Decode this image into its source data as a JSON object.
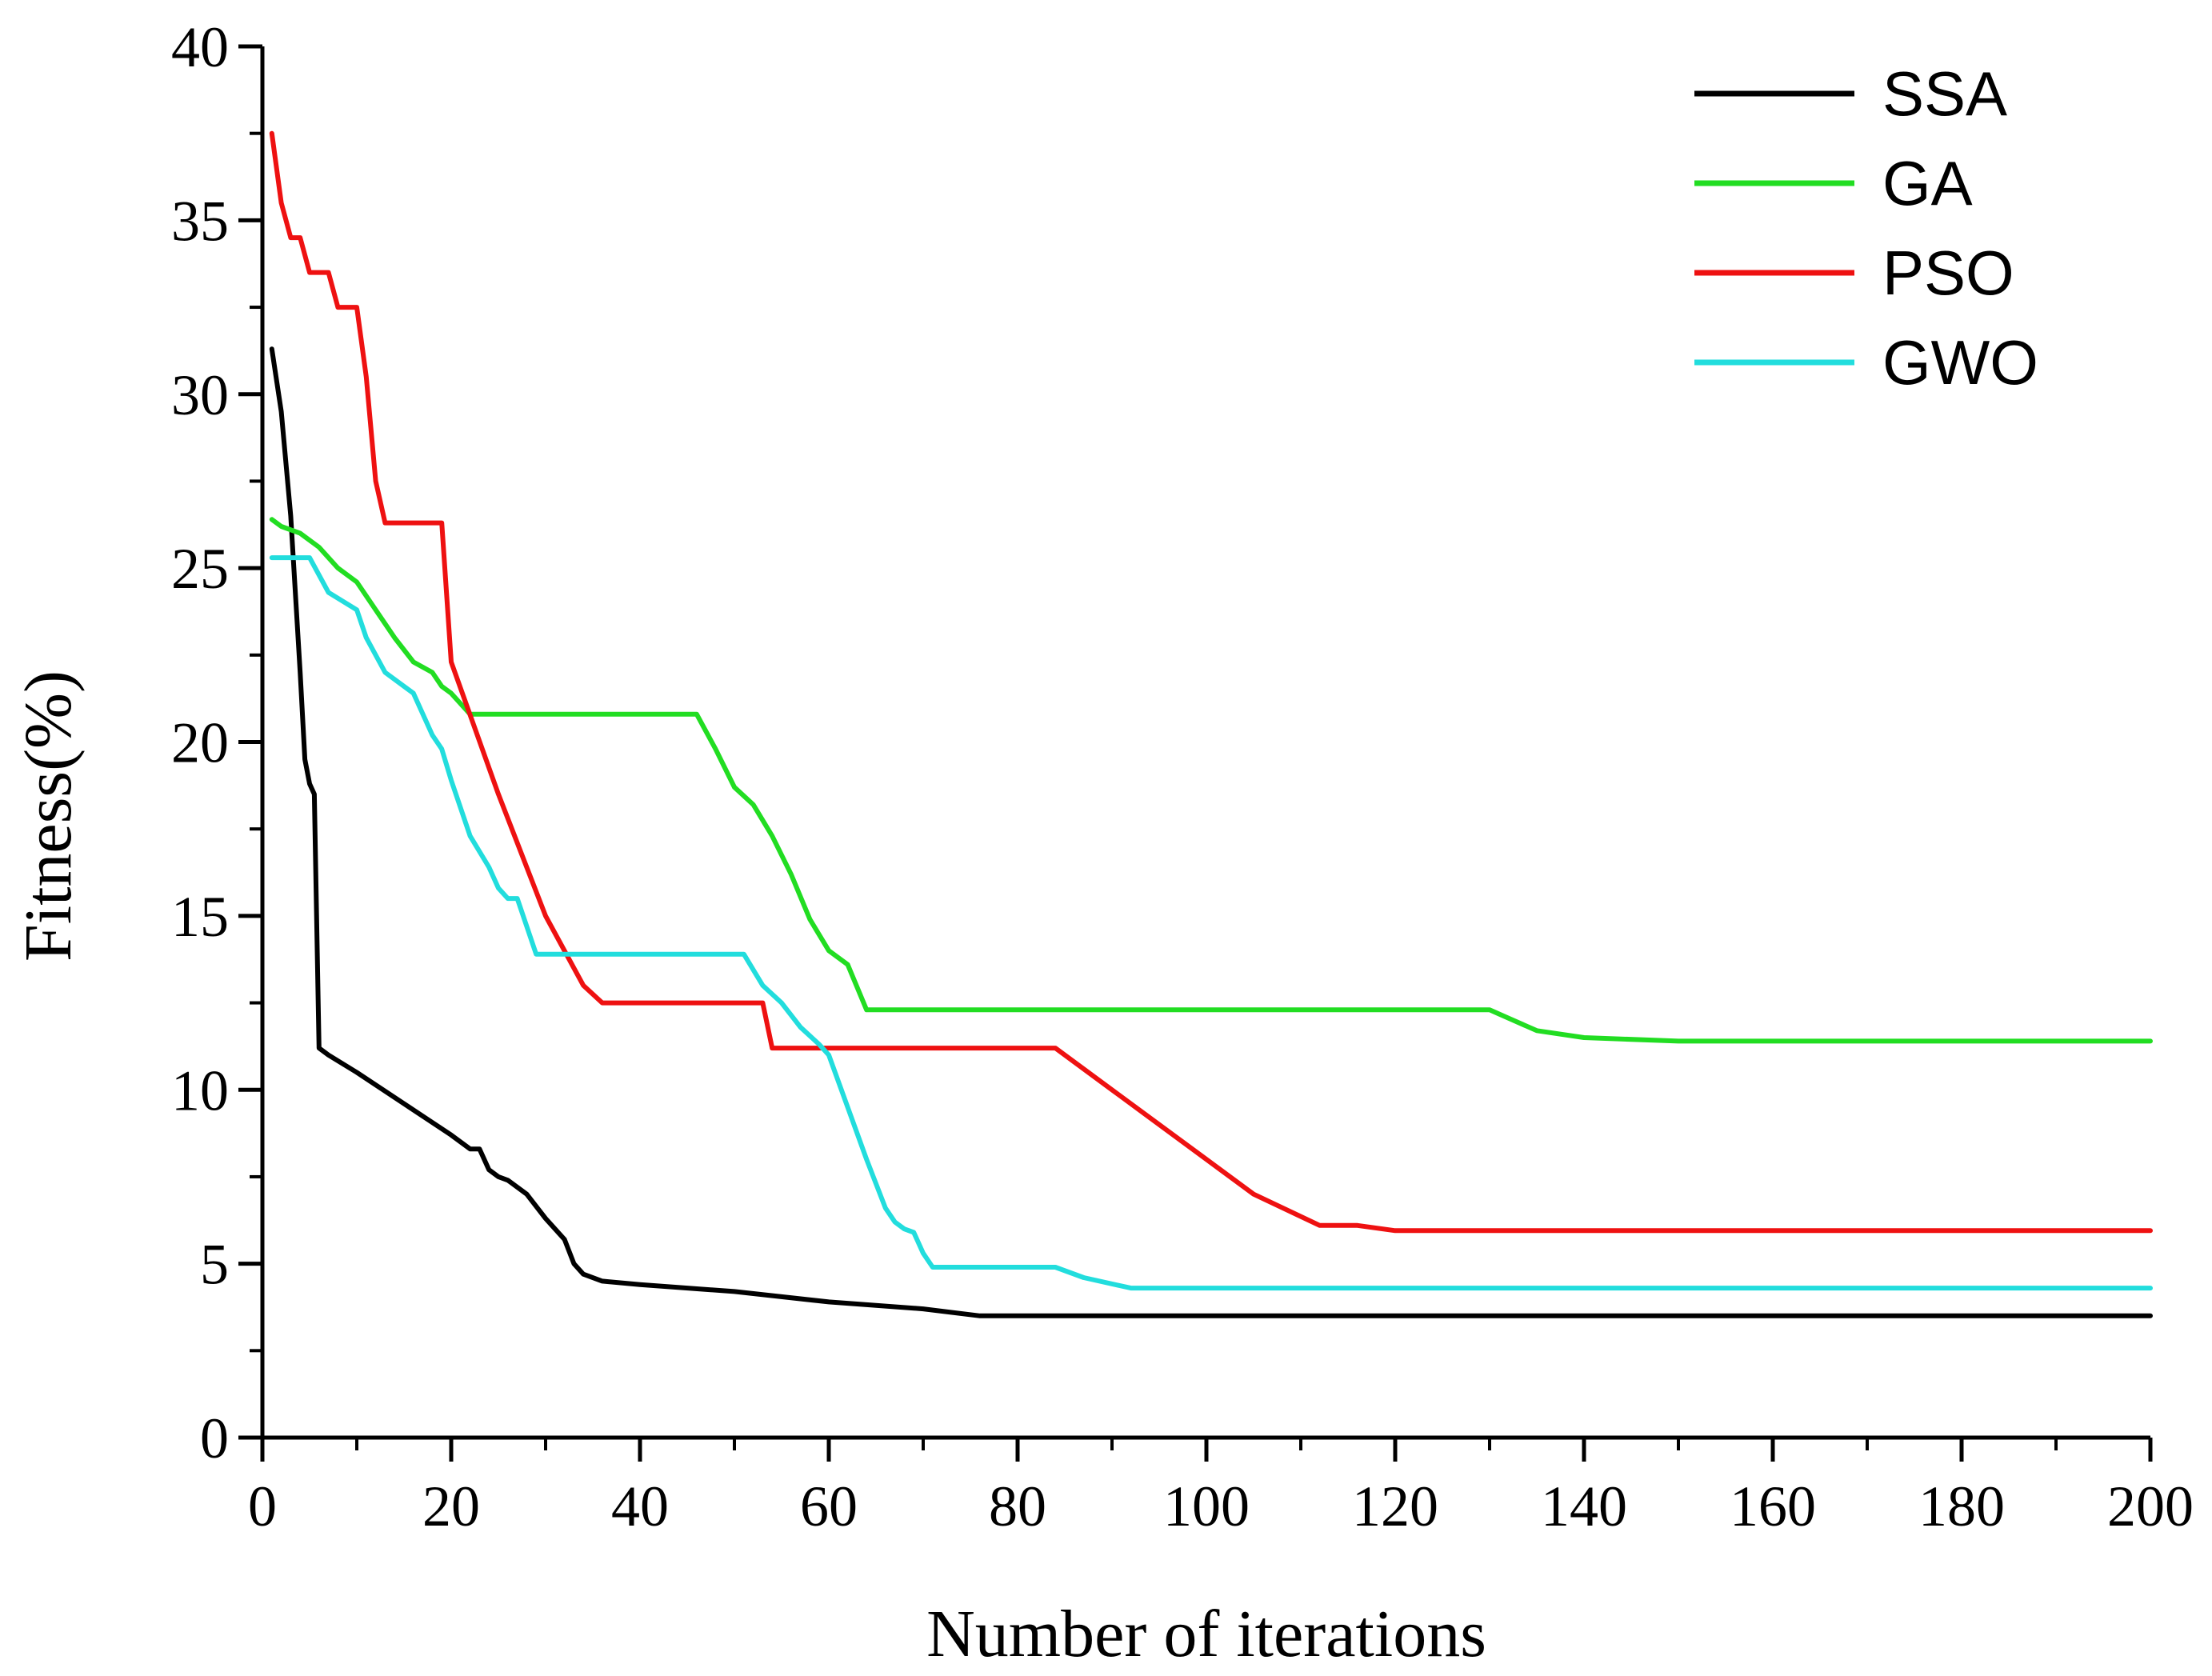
{
  "chart_data": {
    "type": "line",
    "title": "",
    "xlabel": "Number of iterations",
    "ylabel": "Fitness(%)",
    "xlim": [
      0,
      200
    ],
    "ylim": [
      0,
      40
    ],
    "x_major_ticks": [
      0,
      20,
      40,
      60,
      80,
      100,
      120,
      140,
      160,
      180,
      200
    ],
    "x_tick_labels": [
      "0",
      "20",
      "40",
      "60",
      "80",
      "100",
      "120",
      "140",
      "160",
      "180",
      "200"
    ],
    "x_minor_step": 10,
    "y_major_ticks": [
      0,
      5,
      10,
      15,
      20,
      25,
      30,
      35,
      40
    ],
    "y_tick_labels": [
      "0",
      "5",
      "10",
      "15",
      "20",
      "25",
      "30",
      "35",
      "40"
    ],
    "y_minor_step": 2.5,
    "grid": false,
    "legend_position": "top-right",
    "series": [
      {
        "name": "SSA",
        "color": "#000000",
        "points": [
          [
            1,
            31.3
          ],
          [
            2,
            29.5
          ],
          [
            3,
            26.5
          ],
          [
            4,
            22
          ],
          [
            4.5,
            19.5
          ],
          [
            5,
            18.8
          ],
          [
            5.5,
            18.5
          ],
          [
            6,
            11.2
          ],
          [
            7,
            11
          ],
          [
            10,
            10.5
          ],
          [
            15,
            9.6
          ],
          [
            20,
            8.7
          ],
          [
            22,
            8.3
          ],
          [
            23,
            8.3
          ],
          [
            24,
            7.7
          ],
          [
            25,
            7.5
          ],
          [
            26,
            7.4
          ],
          [
            28,
            7
          ],
          [
            30,
            6.3
          ],
          [
            32,
            5.7
          ],
          [
            33,
            5
          ],
          [
            34,
            4.7
          ],
          [
            36,
            4.5
          ],
          [
            40,
            4.4
          ],
          [
            50,
            4.2
          ],
          [
            60,
            3.9
          ],
          [
            70,
            3.7
          ],
          [
            76,
            3.5
          ],
          [
            100,
            3.5
          ],
          [
            150,
            3.5
          ],
          [
            200,
            3.5
          ]
        ]
      },
      {
        "name": "GA",
        "color": "#22dd22",
        "points": [
          [
            1,
            26.4
          ],
          [
            2,
            26.2
          ],
          [
            4,
            26
          ],
          [
            6,
            25.6
          ],
          [
            8,
            25
          ],
          [
            10,
            24.6
          ],
          [
            12,
            23.8
          ],
          [
            14,
            23
          ],
          [
            16,
            22.3
          ],
          [
            18,
            22
          ],
          [
            19,
            21.6
          ],
          [
            20,
            21.4
          ],
          [
            22,
            20.8
          ],
          [
            30,
            20.8
          ],
          [
            40,
            20.8
          ],
          [
            46,
            20.8
          ],
          [
            48,
            19.8
          ],
          [
            50,
            18.7
          ],
          [
            52,
            18.2
          ],
          [
            54,
            17.3
          ],
          [
            56,
            16.2
          ],
          [
            58,
            14.9
          ],
          [
            60,
            14
          ],
          [
            62,
            13.6
          ],
          [
            64,
            12.3
          ],
          [
            80,
            12.3
          ],
          [
            100,
            12.3
          ],
          [
            120,
            12.3
          ],
          [
            130,
            12.3
          ],
          [
            135,
            11.7
          ],
          [
            140,
            11.5
          ],
          [
            150,
            11.4
          ],
          [
            200,
            11.4
          ]
        ]
      },
      {
        "name": "PSO",
        "color": "#ee1111",
        "points": [
          [
            1,
            37.5
          ],
          [
            2,
            35.5
          ],
          [
            3,
            34.5
          ],
          [
            4,
            34.5
          ],
          [
            5,
            33.5
          ],
          [
            7,
            33.5
          ],
          [
            8,
            32.5
          ],
          [
            10,
            32.5
          ],
          [
            11,
            30.5
          ],
          [
            12,
            27.5
          ],
          [
            13,
            26.3
          ],
          [
            19,
            26.3
          ],
          [
            20,
            22.3
          ],
          [
            25,
            18.5
          ],
          [
            30,
            15
          ],
          [
            34,
            13
          ],
          [
            36,
            12.5
          ],
          [
            44,
            12.5
          ],
          [
            53,
            12.5
          ],
          [
            54,
            11.2
          ],
          [
            70,
            11.2
          ],
          [
            84,
            11.2
          ],
          [
            90,
            10
          ],
          [
            100,
            8
          ],
          [
            105,
            7
          ],
          [
            112,
            6.1
          ],
          [
            116,
            6.1
          ],
          [
            120,
            5.95
          ],
          [
            150,
            5.95
          ],
          [
            200,
            5.95
          ]
        ]
      },
      {
        "name": "GWO",
        "color": "#22dddd",
        "points": [
          [
            1,
            25.3
          ],
          [
            5,
            25.3
          ],
          [
            6,
            24.8
          ],
          [
            7,
            24.3
          ],
          [
            10,
            23.8
          ],
          [
            11,
            23
          ],
          [
            13,
            22
          ],
          [
            16,
            21.4
          ],
          [
            18,
            20.2
          ],
          [
            19,
            19.8
          ],
          [
            20,
            18.9
          ],
          [
            22,
            17.3
          ],
          [
            24,
            16.4
          ],
          [
            25,
            15.8
          ],
          [
            26,
            15.5
          ],
          [
            27,
            15.5
          ],
          [
            29,
            13.9
          ],
          [
            40,
            13.9
          ],
          [
            51,
            13.9
          ],
          [
            53,
            13
          ],
          [
            55,
            12.5
          ],
          [
            57,
            11.8
          ],
          [
            59,
            11.3
          ],
          [
            60,
            11
          ],
          [
            62,
            9.5
          ],
          [
            64,
            8
          ],
          [
            66,
            6.6
          ],
          [
            67,
            6.2
          ],
          [
            68,
            6
          ],
          [
            69,
            5.9
          ],
          [
            70,
            5.3
          ],
          [
            71,
            4.9
          ],
          [
            84,
            4.9
          ],
          [
            87,
            4.6
          ],
          [
            92,
            4.3
          ],
          [
            200,
            4.3
          ]
        ]
      }
    ]
  }
}
